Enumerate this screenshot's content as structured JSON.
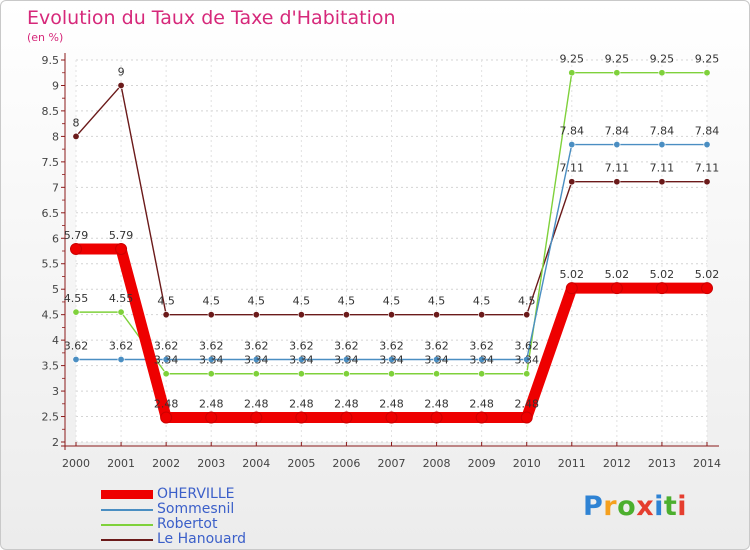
{
  "title": "Evolution du Taux de Taxe d'Habitation",
  "unit": "(en %)",
  "logo": {
    "letters": [
      "P",
      "r",
      "o",
      "x",
      "i",
      "t",
      "i"
    ],
    "colors": [
      "#2f83d4",
      "#f5a01e",
      "#4caf2e",
      "#e53e2f",
      "#2f83d4",
      "#4caf2e",
      "#e53e2f"
    ]
  },
  "chart_data": {
    "type": "line",
    "title": "Evolution du Taux de Taxe d'Habitation",
    "ylabel": "(en %)",
    "xlabel": "",
    "ylim": [
      2,
      9.5
    ],
    "yticks": [
      "2",
      "2.5",
      "3",
      "3.5",
      "4",
      "4.5",
      "5",
      "5.5",
      "6",
      "6.5",
      "7",
      "7.5",
      "8",
      "8.5",
      "9",
      "9.5"
    ],
    "grid": "horizontal dotted",
    "legend": "bottom-left",
    "categories": [
      "2000",
      "2001",
      "2002",
      "2003",
      "2004",
      "2005",
      "2006",
      "2007",
      "2008",
      "2009",
      "2010",
      "2011",
      "2012",
      "2013",
      "2014"
    ],
    "series": [
      {
        "name": "Le Hanouard",
        "color": "#6b1a1a",
        "values": [
          8,
          9,
          4.5,
          4.5,
          4.5,
          4.5,
          4.5,
          4.5,
          4.5,
          4.5,
          4.5,
          7.11,
          7.11,
          7.11,
          7.11
        ],
        "labels": [
          "8",
          "9",
          "4.5",
          "4.5",
          "4.5",
          "4.5",
          "4.5",
          "4.5",
          "4.5",
          "4.5",
          "4.5",
          "7.11",
          "7.11",
          "7.11",
          "7.11"
        ]
      },
      {
        "name": "Robertot",
        "color": "#7fd13b",
        "values": [
          4.55,
          4.55,
          3.34,
          3.34,
          3.34,
          3.34,
          3.34,
          3.34,
          3.34,
          3.34,
          3.34,
          9.25,
          9.25,
          9.25,
          9.25
        ],
        "labels": [
          "4.55",
          "4.55",
          "3.34",
          "3.34",
          "3.34",
          "3.34",
          "3.34",
          "3.34",
          "3.34",
          "3.34",
          "3.34",
          "9.25",
          "9.25",
          "9.25",
          "9.25"
        ]
      },
      {
        "name": "Sommesnil",
        "color": "#4a8ec2",
        "values": [
          3.62,
          3.62,
          3.62,
          3.62,
          3.62,
          3.62,
          3.62,
          3.62,
          3.62,
          3.62,
          3.62,
          7.84,
          7.84,
          7.84,
          7.84
        ],
        "labels": [
          "3.62",
          "3.62",
          "3.62",
          "3.62",
          "3.62",
          "3.62",
          "3.62",
          "3.62",
          "3.62",
          "3.62",
          "3.62",
          "7.84",
          "7.84",
          "7.84",
          "7.84"
        ]
      },
      {
        "name": "OHERVILLE",
        "color": "#ee0000",
        "values": [
          5.79,
          5.79,
          2.48,
          2.48,
          2.48,
          2.48,
          2.48,
          2.48,
          2.48,
          2.48,
          2.48,
          5.02,
          5.02,
          5.02,
          5.02
        ],
        "labels": [
          "5.79",
          "5.79",
          "2.48",
          "2.48",
          "2.48",
          "2.48",
          "2.48",
          "2.48",
          "2.48",
          "2.48",
          "2.48",
          "5.02",
          "5.02",
          "5.02",
          "5.02"
        ]
      }
    ],
    "legend_order": [
      "OHERVILLE",
      "Sommesnil",
      "Robertot",
      "Le Hanouard"
    ]
  }
}
